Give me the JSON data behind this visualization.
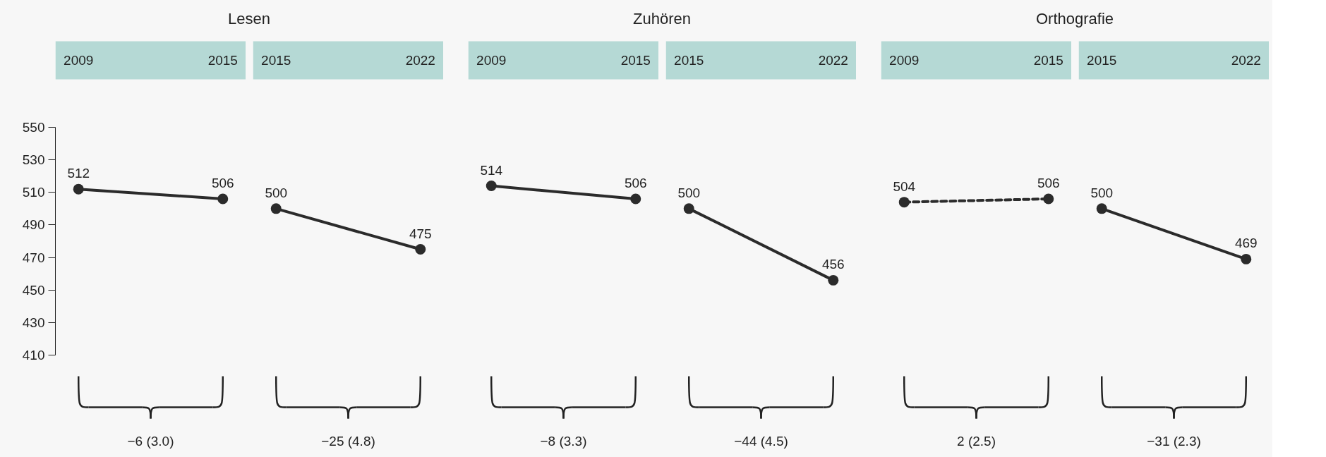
{
  "chart_data": [
    {
      "type": "line",
      "title": "Lesen",
      "categories": [
        "2009",
        "2015"
      ],
      "values": [
        512,
        506
      ],
      "color": "#2b2b2b",
      "marker": "circle",
      "line_style": "solid",
      "data_labels": true,
      "ylim": [
        410,
        550
      ],
      "yticks": [
        410,
        430,
        450,
        470,
        490,
        510,
        530,
        550
      ],
      "annotations": [
        "−6 (3.0)"
      ]
    },
    {
      "type": "line",
      "categories": [
        "2015",
        "2022"
      ],
      "values": [
        500,
        475
      ],
      "color": "#2b2b2b",
      "marker": "circle",
      "line_style": "solid",
      "data_labels": true,
      "ylim": [
        410,
        550
      ],
      "tick_labels": "x",
      "annotations": [
        "−25 (4.8)"
      ]
    },
    {
      "type": "line",
      "title": "Zuhören",
      "categories": [
        "2009",
        "2015"
      ],
      "values": [
        514,
        506
      ],
      "color": "#2b2b2b",
      "marker": "circle",
      "line_style": "solid",
      "data_labels": true,
      "ylim": [
        410,
        550
      ],
      "tick_labels": "x",
      "annotations": [
        "−8 (3.3)"
      ]
    },
    {
      "type": "line",
      "categories": [
        "2015",
        "2022"
      ],
      "values": [
        500,
        456
      ],
      "color": "#2b2b2b",
      "marker": "circle",
      "line_style": "solid",
      "data_labels": true,
      "ylim": [
        410,
        550
      ],
      "tick_labels": "x",
      "annotations": [
        "−44 (4.5)"
      ]
    },
    {
      "type": "line",
      "title": "Orthografie",
      "categories": [
        "2009",
        "2015"
      ],
      "values": [
        504,
        506
      ],
      "color": "#2b2b2b",
      "marker": "circle",
      "line_style": "dashed",
      "data_labels": true,
      "ylim": [
        410,
        550
      ],
      "tick_labels": "x",
      "annotations": [
        "2 (2.5)"
      ]
    },
    {
      "type": "line",
      "categories": [
        "2015",
        "2022"
      ],
      "values": [
        500,
        469
      ],
      "color": "#2b2b2b",
      "marker": "circle",
      "line_style": "solid",
      "data_labels": true,
      "ylim": [
        410,
        550
      ],
      "tick_labels": "x",
      "annotations": [
        "−31 (2.3)"
      ]
    }
  ]
}
